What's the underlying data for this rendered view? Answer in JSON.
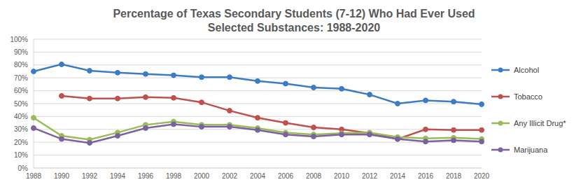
{
  "chart_data": {
    "type": "line",
    "title": "Percentage of Texas Secondary Students (7-12) Who Had Ever Used Selected Substances: 1988-2020",
    "categories": [
      "1988",
      "1990",
      "1992",
      "1994",
      "1996",
      "1998",
      "2000",
      "2002",
      "2004",
      "2006",
      "2008",
      "2010",
      "2012",
      "2014",
      "2016",
      "2018",
      "2020"
    ],
    "series": [
      {
        "name": "Alcohol",
        "color": "#3B7CC4",
        "values": [
          75,
          80.5,
          75.5,
          74,
          73,
          72,
          70.5,
          70.5,
          67.5,
          65.5,
          62.5,
          61.5,
          57,
          50,
          52.5,
          51.5,
          49.5
        ]
      },
      {
        "name": "Tobacco",
        "color": "#C0504D",
        "values": [
          null,
          56,
          54,
          54,
          55,
          54.5,
          51,
          44.5,
          39,
          35,
          31.5,
          30,
          27,
          22.5,
          30,
          29.5,
          29.5
        ]
      },
      {
        "name": "Any Illicit Drug*",
        "color": "#9BBB59",
        "values": [
          39,
          25,
          22,
          27.5,
          33.5,
          36,
          33.5,
          33.5,
          31,
          27.5,
          26,
          27,
          27.5,
          24,
          23,
          23.5,
          22.5
        ]
      },
      {
        "name": "Marijuana",
        "color": "#7D60A0",
        "values": [
          31,
          22.5,
          19.5,
          25,
          31,
          34,
          32,
          32,
          29.5,
          26,
          24.5,
          26,
          26,
          22.5,
          20.5,
          21.5,
          20.5
        ]
      }
    ],
    "ylim": [
      0,
      100
    ],
    "yticks": [
      {
        "value": 0,
        "label": "0%"
      },
      {
        "value": 10,
        "label": "10%"
      },
      {
        "value": 20,
        "label": "20%"
      },
      {
        "value": 30,
        "label": "30%"
      },
      {
        "value": 40,
        "label": "40%"
      },
      {
        "value": 50,
        "label": "50%"
      },
      {
        "value": 60,
        "label": "60%"
      },
      {
        "value": 70,
        "label": "70%"
      },
      {
        "value": 80,
        "label": "80%"
      },
      {
        "value": 90,
        "label": "90%"
      },
      {
        "value": 100,
        "label": "100%"
      }
    ],
    "grid": true,
    "legend": "right",
    "marker": "circle"
  }
}
